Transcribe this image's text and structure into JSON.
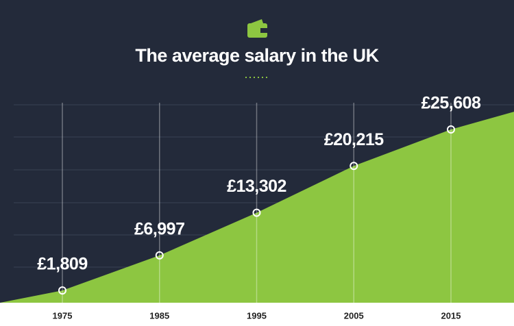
{
  "chart_data": {
    "type": "area",
    "title": "The average salary in the UK",
    "x": [
      1975,
      1985,
      1995,
      2005,
      2015
    ],
    "values": [
      1809,
      6997,
      13302,
      20215,
      25608
    ],
    "value_labels": [
      "£1,809",
      "£6,997",
      "£13,302",
      "£20,215",
      "£25,608"
    ],
    "color": "#8dc641"
  }
}
